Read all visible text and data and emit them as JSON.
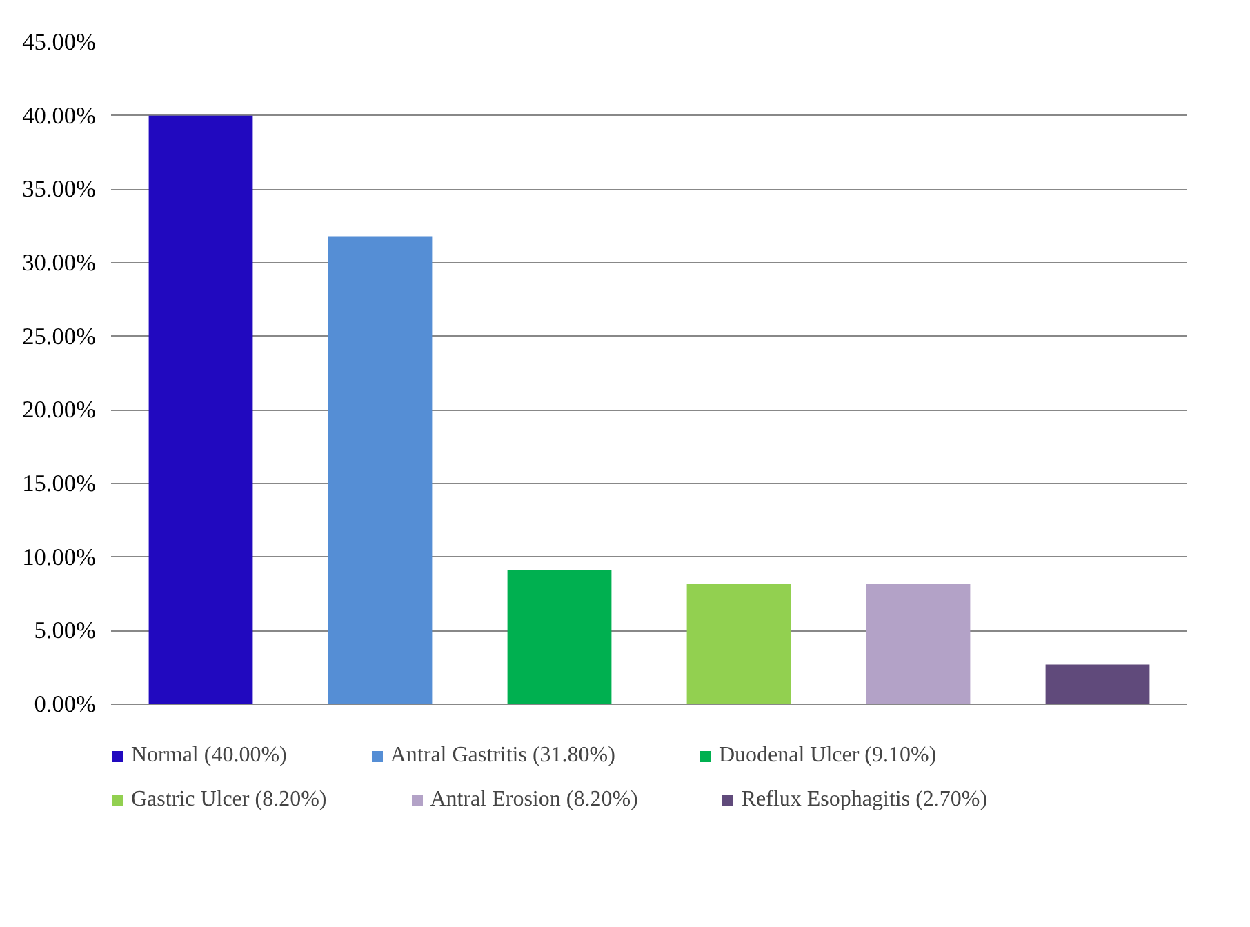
{
  "chart_data": {
    "type": "bar",
    "categories": [
      null,
      null,
      null,
      null,
      null,
      null
    ],
    "series": [
      {
        "name": "Normal (40.00%)",
        "color": "#2109bf",
        "values": [
          40.0,
          null,
          null,
          null,
          null,
          null
        ]
      },
      {
        "name": "Antral Gastritis (31.80%)",
        "color": "#558ed5",
        "values": [
          null,
          31.8,
          null,
          null,
          null,
          null
        ]
      },
      {
        "name": "Duodenal Ulcer (9.10%)",
        "color": "#00b050",
        "values": [
          null,
          null,
          9.1,
          null,
          null,
          null
        ]
      },
      {
        "name": "Gastric Ulcer (8.20%)",
        "color": "#92d050",
        "values": [
          null,
          null,
          null,
          8.2,
          null,
          null
        ]
      },
      {
        "name": "Antral Erosion (8.20%)",
        "color": "#b3a2c7",
        "values": [
          null,
          null,
          null,
          null,
          8.2,
          null
        ]
      },
      {
        "name": "Reflux Esophagitis (2.70%)",
        "color": "#604a7b",
        "values": [
          null,
          null,
          null,
          null,
          null,
          2.7
        ]
      }
    ],
    "ylim": [
      0,
      45
    ],
    "yticks": [
      {
        "value": 0,
        "label": "0.00%"
      },
      {
        "value": 5,
        "label": "5.00%"
      },
      {
        "value": 10,
        "label": "10.00%"
      },
      {
        "value": 15,
        "label": "15.00%"
      },
      {
        "value": 20,
        "label": "20.00%"
      },
      {
        "value": 25,
        "label": "25.00%"
      },
      {
        "value": 30,
        "label": "30.00%"
      },
      {
        "value": 35,
        "label": "35.00%"
      },
      {
        "value": 40,
        "label": "40.00%"
      },
      {
        "value": 45,
        "label": "45.00%"
      }
    ],
    "grid": "y",
    "legend": "bottom"
  }
}
